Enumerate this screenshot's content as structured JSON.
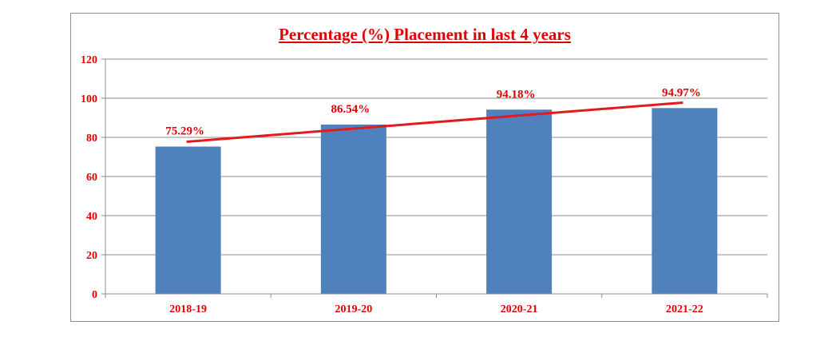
{
  "chart_data": {
    "type": "bar",
    "title": "Percentage (%) Placement in last 4 years",
    "categories": [
      "2018-19",
      "2019-20",
      "2020-21",
      "2021-22"
    ],
    "values": [
      75.29,
      86.54,
      94.18,
      94.97
    ],
    "data_labels": [
      "75.29%",
      "86.54%",
      "94.18%",
      "94.97%"
    ],
    "ylim": [
      0,
      120
    ],
    "yticks": [
      0,
      20,
      40,
      60,
      80,
      100,
      120
    ],
    "ytick_labels": [
      "0",
      "20",
      "40",
      "60",
      "80",
      "100",
      "120"
    ],
    "xlabel": "",
    "ylabel": "",
    "grid": true,
    "trendline": {
      "type": "linear",
      "color": "#e31a1c"
    },
    "colors": {
      "bar": "#4f81bd",
      "text": "#e00000",
      "grid": "#8c8c8c",
      "axis": "#8c8c8c"
    }
  }
}
